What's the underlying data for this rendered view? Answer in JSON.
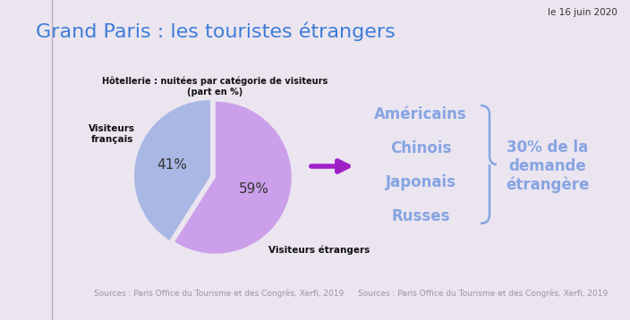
{
  "chart_data": {
    "type": "pie",
    "title": "Grand Paris : les touristes étrangers",
    "subtitle": "Hôtellerie : nuitées par catégorie de visiteurs\n(part en %)",
    "categories": [
      "Visiteurs français",
      "Visiteurs étrangers"
    ],
    "values": [
      41,
      59
    ],
    "value_labels": [
      "41%",
      "59%"
    ],
    "colors": [
      "#a9b7e4",
      "#cb9fea"
    ],
    "data_labels": true,
    "annotations": {
      "date": "le 16 juin 2020",
      "groups": [
        "Américains",
        "Chinois",
        "Japonais",
        "Russes"
      ],
      "group_note": "30% de la\ndemande\nétrangère",
      "sources": [
        "Sources : Paris Office du Tourisme et des Congrès, Xerfi, 2019",
        "Sources : Paris Office du Tourisme et des Congrès, Xerfi, 2019"
      ]
    }
  }
}
